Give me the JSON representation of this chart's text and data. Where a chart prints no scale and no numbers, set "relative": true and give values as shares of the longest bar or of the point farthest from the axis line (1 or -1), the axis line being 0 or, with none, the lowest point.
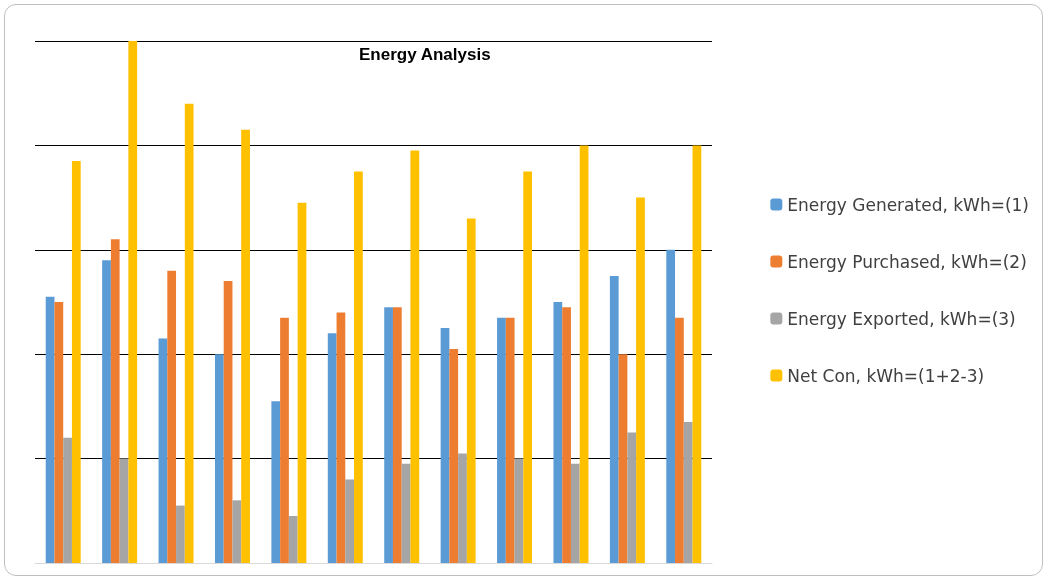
{
  "chart_data": {
    "type": "bar",
    "title": "Energy Analysis",
    "relative": true,
    "grid": true,
    "legend": "right",
    "categories": [
      null,
      null,
      null,
      null,
      null,
      null,
      null,
      null,
      null,
      null,
      null,
      null
    ],
    "series": [
      {
        "name": "Energy Generated, kWh=(1)",
        "color": "#5b9bd5",
        "values": [
          0.51,
          0.58,
          0.43,
          0.4,
          0.31,
          0.44,
          0.49,
          0.45,
          0.47,
          0.5,
          0.55,
          0.6
        ]
      },
      {
        "name": "Energy Purchased, kWh=(2)",
        "color": "#ed7d31",
        "values": [
          0.5,
          0.62,
          0.56,
          0.54,
          0.47,
          0.48,
          0.49,
          0.41,
          0.47,
          0.49,
          0.4,
          0.47
        ]
      },
      {
        "name": "Energy Exported, kWh=(3)",
        "color": "#a5a5a5",
        "values": [
          0.24,
          0.2,
          0.11,
          0.12,
          0.09,
          0.16,
          0.19,
          0.21,
          0.2,
          0.19,
          0.25,
          0.27
        ]
      },
      {
        "name": "Net Con, kWh=(1+2-3)",
        "color": "#ffc000",
        "values": [
          0.77,
          1,
          0.88,
          0.83,
          0.69,
          0.75,
          0.79,
          0.66,
          0.75,
          0.8,
          0.7,
          0.8
        ]
      }
    ]
  }
}
